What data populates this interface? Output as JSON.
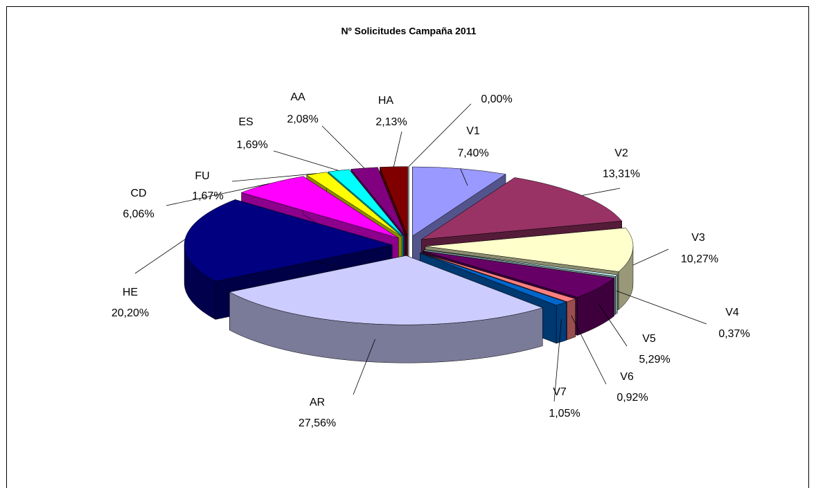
{
  "chart_data": {
    "type": "pie",
    "title": "Nº Solicitudes Campaña 2011",
    "categories": [
      "V1",
      "V2",
      "V3",
      "V4",
      "V5",
      "V6",
      "V7",
      "AR",
      "HE",
      "CD",
      "FU",
      "ES",
      "AA",
      "HA",
      null
    ],
    "values": [
      7.4,
      13.31,
      10.27,
      0.37,
      5.29,
      0.92,
      1.05,
      27.56,
      20.2,
      6.06,
      1.67,
      1.69,
      2.08,
      2.13,
      0.0
    ],
    "value_labels": [
      "7,40%",
      "13,31%",
      "10,27%",
      "0,37%",
      "5,29%",
      "0,92%",
      "1,05%",
      "27,56%",
      "20,20%",
      "6,06%",
      "1,67%",
      "1,69%",
      "2,08%",
      "2,13%",
      "0,00%"
    ],
    "colors": [
      "#9999ff",
      "#993366",
      "#ffffcc",
      "#ccffff",
      "#660066",
      "#ff8080",
      "#0066cc",
      "#ccccff",
      "#000080",
      "#ff00ff",
      "#ffff00",
      "#00ffff",
      "#800080",
      "#800000",
      "#008080"
    ]
  }
}
